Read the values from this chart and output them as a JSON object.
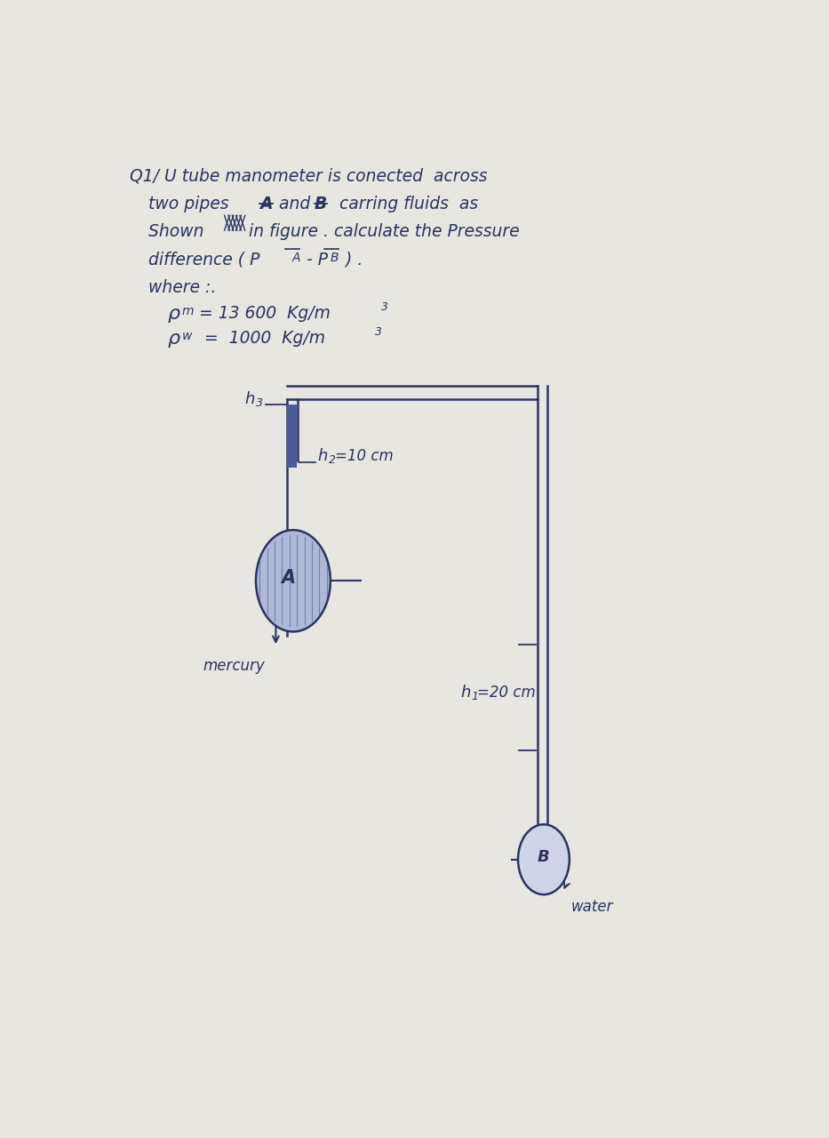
{
  "bg_color": "#e8e6e0",
  "text_color": "#2a3560",
  "line_color": "#2a3560",
  "title_line1": "Q1/ U tube manometer is conected  across",
  "title_line2_pre": "two pipes ",
  "title_line2_A": "A",
  "title_line2_mid": " and ",
  "title_line2_B": "B",
  "title_line2_post": "  carring fluids  as",
  "title_line3_pre": "Shown ",
  "title_line3_post": " in figure . calculate the Pressure",
  "title_line4": "difference ( P",
  "title_line4_sub_A": "A",
  "title_line4_mid2": " - P",
  "title_line4_sub_B": "B",
  "title_line4_end": " ) .",
  "title_line5": "where :.",
  "rho_m_label": "m",
  "rho_m_val": " = 13 600  Kg/m",
  "rho_m_exp": "3",
  "rho_w_label": "w",
  "rho_w_val": "  =  1000  Kg/m",
  "rho_w_exp": "3",
  "h3_label": "h3",
  "h2_label": "h2=10 cm",
  "h1_label": "h1=20 cm",
  "mercury_label": "mercury",
  "water_label": "water",
  "A_label": "A",
  "B_label": "B",
  "pipe_color": "#2a3560",
  "mercury_fill": "#4a5a9a",
  "pipe_A_fill": "#b0b8d8",
  "pipe_B_fill": "#d0d4e8"
}
